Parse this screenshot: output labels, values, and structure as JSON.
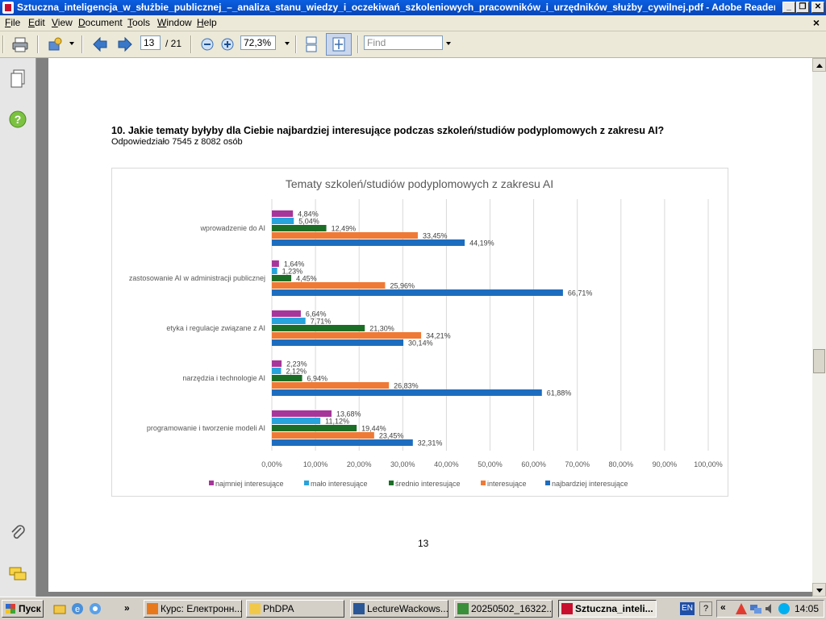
{
  "window": {
    "title": "Sztuczna_inteligencja_w_służbie_publicznej_–_analiza_stanu_wiedzy_i_oczekiwań_szkoleniowych_pracowników_i_urzędników_służby_cywilnej.pdf - Adobe Reader"
  },
  "menu": [
    {
      "label": "File",
      "ul": "F"
    },
    {
      "label": "Edit",
      "ul": "E"
    },
    {
      "label": "View",
      "ul": "V"
    },
    {
      "label": "Document",
      "ul": "D"
    },
    {
      "label": "Tools",
      "ul": "T"
    },
    {
      "label": "Window",
      "ul": "W"
    },
    {
      "label": "Help",
      "ul": "H"
    }
  ],
  "toolbar": {
    "page_current": "13",
    "page_total": "/ 21",
    "zoom": "72,3%",
    "find_placeholder": "Find"
  },
  "document": {
    "question": "10. Jakie tematy byłyby dla Ciebie najbardziej interesujące podczas szkoleń/studiów podyplomowych z zakresu AI?",
    "respondents": "Odpowiedziało 7545 z 8082 osób",
    "page_number": "13"
  },
  "chart_data": {
    "type": "bar",
    "orientation": "horizontal",
    "title": "Tematy szkoleń/studiów podyplomowych z zakresu AI",
    "categories": [
      "wprowadzenie do AI",
      "zastosowanie AI w administracji publicznej",
      "etyka i regulacje związane z AI",
      "narzędzia i technologie AI",
      "programowanie i tworzenie modeli AI"
    ],
    "series": [
      {
        "name": "najmniej interesujące",
        "color": "#a6369a",
        "values": [
          4.84,
          1.64,
          6.64,
          2.23,
          13.68
        ],
        "labels": [
          "4,84%",
          "1,64%",
          "6,64%",
          "2,23%",
          "13,68%"
        ]
      },
      {
        "name": "mało interesujące",
        "color": "#28a3dc",
        "values": [
          5.04,
          1.23,
          7.71,
          2.12,
          11.12
        ],
        "labels": [
          "5,04%",
          "1,23%",
          "7,71%",
          "2,12%",
          "11,12%"
        ]
      },
      {
        "name": "średnio interesujące",
        "color": "#1a6e26",
        "values": [
          12.49,
          4.45,
          21.3,
          6.94,
          19.44
        ],
        "labels": [
          "12,49%",
          "4,45%",
          "21,30%",
          "6,94%",
          "19,44%"
        ]
      },
      {
        "name": "interesujące",
        "color": "#ef7a36",
        "values": [
          33.45,
          25.96,
          34.21,
          26.83,
          23.45
        ],
        "labels": [
          "33,45%",
          "25,96%",
          "34,21%",
          "26,83%",
          "23,45%"
        ]
      },
      {
        "name": "najbardziej interesujące",
        "color": "#1c6dbf",
        "values": [
          44.19,
          66.71,
          30.14,
          61.88,
          32.31
        ],
        "labels": [
          "44,19%",
          "66,71%",
          "30,14%",
          "61,88%",
          "32,31%"
        ]
      }
    ],
    "xlim": [
      0,
      100
    ],
    "xticks": [
      "0,00%",
      "10,00%",
      "20,00%",
      "30,00%",
      "40,00%",
      "50,00%",
      "60,00%",
      "70,00%",
      "80,00%",
      "90,00%",
      "100,00%"
    ],
    "grid": true,
    "legend": "bottom"
  },
  "taskbar": {
    "start": "Пуск",
    "items": [
      {
        "label": "Курс: Електронн...",
        "color": "#e8781c"
      },
      {
        "label": "PhDPA",
        "color": "#f2c84b"
      },
      {
        "label": "LectureWackows...",
        "color": "#2b5797"
      },
      {
        "label": "20250502_16322...",
        "color": "#3a8f3a"
      },
      {
        "label": "Sztuczna_inteli...",
        "color": "#c8102e"
      }
    ],
    "lang": "EN",
    "clock": "14:05"
  }
}
